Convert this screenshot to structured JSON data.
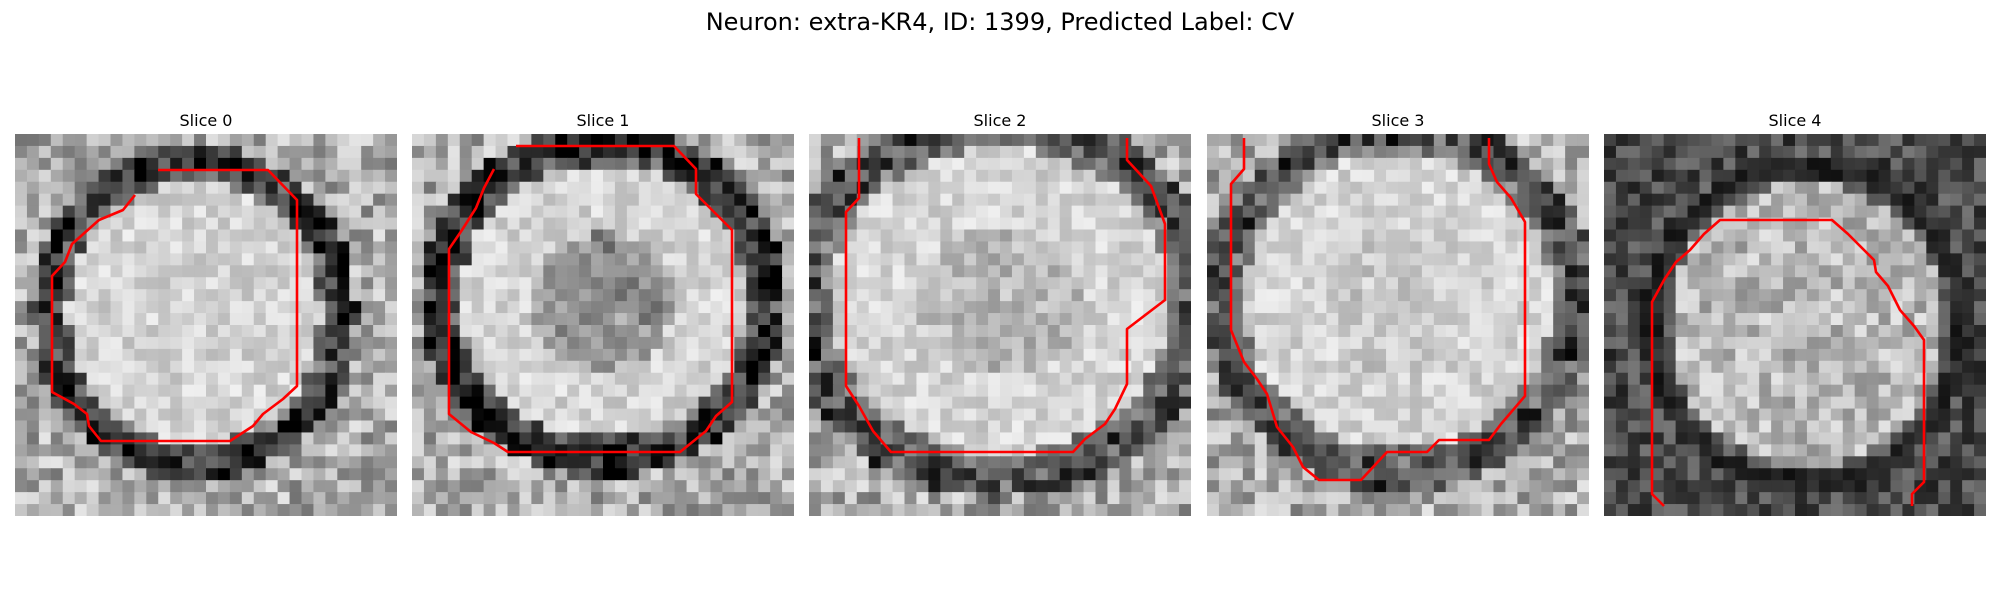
{
  "figure": {
    "suptitle": "Neuron: extra-KR4, ID: 1399, Predicted Label: CV"
  },
  "panels": [
    {
      "title": "Slice 0"
    },
    {
      "title": "Slice 1"
    },
    {
      "title": "Slice 2"
    },
    {
      "title": "Slice 3"
    },
    {
      "title": "Slice 4"
    }
  ],
  "colors": {
    "contour": "#ff0000",
    "background": "#ffffff"
  }
}
